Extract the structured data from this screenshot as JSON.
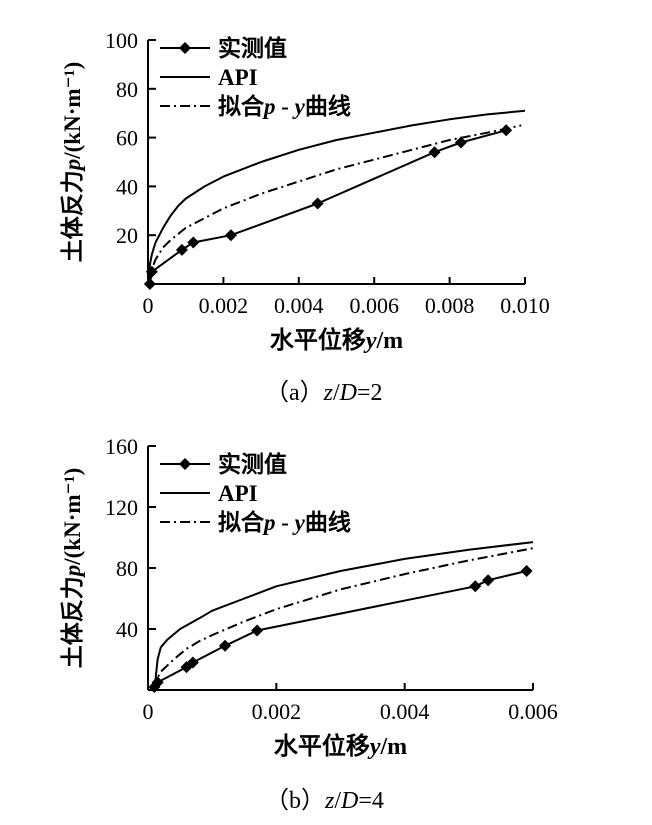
{
  "figure": {
    "panels": [
      {
        "caption": {
          "label": "（a）",
          "var1": "z",
          "slash": "/",
          "var2": "D",
          "eq": "=2"
        },
        "legend": [
          "实测值",
          "API",
          "拟合p - y曲线"
        ],
        "xlabel": "水平位移y/m",
        "ylabel": "土体反力p/(kN·m⁻¹)"
      },
      {
        "caption": {
          "label": "（b）",
          "var1": "z",
          "slash": "/",
          "var2": "D",
          "eq": "=4"
        },
        "legend": [
          "实测值",
          "API",
          "拟合p - y曲线"
        ],
        "xlabel": "水平位移y/m",
        "ylabel": "土体反力p/(kN·m⁻¹)"
      }
    ]
  },
  "chart_data": [
    {
      "type": "line",
      "title": "",
      "xlabel": "水平位移y/m",
      "ylabel": "土体反力p/(kN·m⁻¹)",
      "xlim": [
        0,
        0.01
      ],
      "ylim": [
        0,
        100
      ],
      "xticks": [
        0,
        0.002,
        0.004,
        0.006,
        0.008,
        0.01
      ],
      "xtick_labels": [
        "0",
        "0.002",
        "0.004",
        "0.006",
        "0.008",
        "0.010"
      ],
      "yticks": [
        20,
        40,
        60,
        80,
        100
      ],
      "ytick_labels": [
        "20",
        "40",
        "60",
        "80",
        "100"
      ],
      "legend_position": "top-left",
      "grid": false,
      "series": [
        {
          "name": "实测值",
          "style": "diamond-line",
          "x": [
            5e-05,
            0.0001,
            0.0009,
            0.0012,
            0.0022,
            0.0045,
            0.0076,
            0.0083,
            0.0095
          ],
          "y": [
            0,
            5,
            14,
            17,
            20,
            33,
            54,
            58,
            63
          ]
        },
        {
          "name": "API",
          "style": "solid",
          "x": [
            0,
            5e-05,
            0.0001,
            0.0002,
            0.0004,
            0.0006,
            0.0008,
            0.001,
            0.0015,
            0.002,
            0.003,
            0.004,
            0.005,
            0.006,
            0.007,
            0.008,
            0.009,
            0.01
          ],
          "y": [
            0,
            8,
            12,
            17,
            23,
            28,
            32,
            35,
            40,
            44,
            50,
            55,
            59,
            62,
            65,
            67.5,
            69.5,
            71
          ]
        },
        {
          "name": "拟合p - y曲线",
          "style": "dashdot",
          "x": [
            0,
            0.0001,
            0.0002,
            0.0004,
            0.0006,
            0.001,
            0.0015,
            0.002,
            0.003,
            0.004,
            0.005,
            0.006,
            0.007,
            0.008,
            0.009,
            0.0099
          ],
          "y": [
            0,
            6,
            10,
            15,
            18,
            23,
            27,
            31,
            37,
            42,
            47,
            51,
            55,
            59,
            62,
            65
          ]
        }
      ]
    },
    {
      "type": "line",
      "title": "",
      "xlabel": "水平位移y/m",
      "ylabel": "土体反力p/(kN·m⁻¹)",
      "xlim": [
        0,
        0.006
      ],
      "ylim": [
        0,
        160
      ],
      "xticks": [
        0,
        0.002,
        0.004,
        0.006
      ],
      "xtick_labels": [
        "0",
        "0.002",
        "0.004",
        "0.006"
      ],
      "yticks": [
        40,
        80,
        120,
        160
      ],
      "ytick_labels": [
        "40",
        "80",
        "120",
        "160"
      ],
      "legend_position": "top-left",
      "grid": false,
      "series": [
        {
          "name": "实测值",
          "style": "diamond-line",
          "x": [
            0.0001,
            0.00015,
            0.0006,
            0.0007,
            0.0012,
            0.0017,
            0.0051,
            0.0053,
            0.0059
          ],
          "y": [
            2,
            5,
            15,
            18,
            29,
            39,
            68,
            72,
            78
          ]
        },
        {
          "name": "API",
          "style": "solid",
          "x": [
            0.0001,
            0.00015,
            0.0002,
            0.0003,
            0.0005,
            0.0008,
            0.001,
            0.0015,
            0.002,
            0.003,
            0.004,
            0.005,
            0.006
          ],
          "y": [
            0,
            20,
            28,
            33,
            40,
            47,
            52,
            60,
            68,
            78,
            86,
            92,
            97
          ]
        },
        {
          "name": "拟合p - y曲线",
          "style": "dashdot",
          "x": [
            0.0001,
            0.00015,
            0.0002,
            0.0004,
            0.0006,
            0.0008,
            0.001,
            0.0015,
            0.002,
            0.003,
            0.004,
            0.005,
            0.006
          ],
          "y": [
            0,
            8,
            12,
            20,
            27,
            32,
            36,
            45,
            53,
            66,
            76,
            85,
            93
          ]
        }
      ]
    }
  ]
}
